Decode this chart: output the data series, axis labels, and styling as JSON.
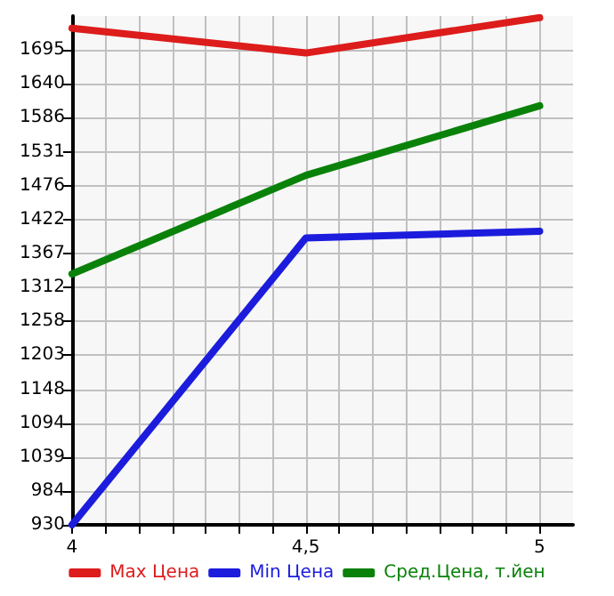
{
  "chart_data": {
    "type": "line",
    "x": [
      4,
      4.5,
      5
    ],
    "series": [
      {
        "name": "Max Цена",
        "color": "#dd1c1c",
        "values": [
          1730,
          1690,
          1747
        ]
      },
      {
        "name": "Min Цена",
        "color": "#1c1cdd",
        "values": [
          930,
          1392,
          1403
        ]
      },
      {
        "name": "Сред.Цена, т.йен",
        "color": "#0a820a",
        "values": [
          1334,
          1493,
          1605
        ]
      }
    ],
    "xlim": [
      4,
      5.0714
    ],
    "xticks": [
      {
        "value": 4,
        "label": "4"
      },
      {
        "value": 4.0714,
        "label": null
      },
      {
        "value": 4.1429,
        "label": null
      },
      {
        "value": 4.2143,
        "label": null
      },
      {
        "value": 4.2857,
        "label": null
      },
      {
        "value": 4.3571,
        "label": null
      },
      {
        "value": 4.4286,
        "label": null
      },
      {
        "value": 4.5,
        "label": "4,5"
      },
      {
        "value": 4.5714,
        "label": null
      },
      {
        "value": 4.6429,
        "label": null
      },
      {
        "value": 4.7143,
        "label": null
      },
      {
        "value": 4.7857,
        "label": null
      },
      {
        "value": 4.8571,
        "label": null
      },
      {
        "value": 4.9286,
        "label": null
      },
      {
        "value": 5,
        "label": "5"
      }
    ],
    "ylim": [
      930,
      1749.6
    ],
    "yticks": [
      930,
      984,
      1039,
      1094,
      1148,
      1203,
      1258,
      1312,
      1367,
      1422,
      1476,
      1531,
      1586,
      1640,
      1695
    ],
    "grid": true,
    "legend": "bottom",
    "marker": "none",
    "line_style": "solid"
  }
}
